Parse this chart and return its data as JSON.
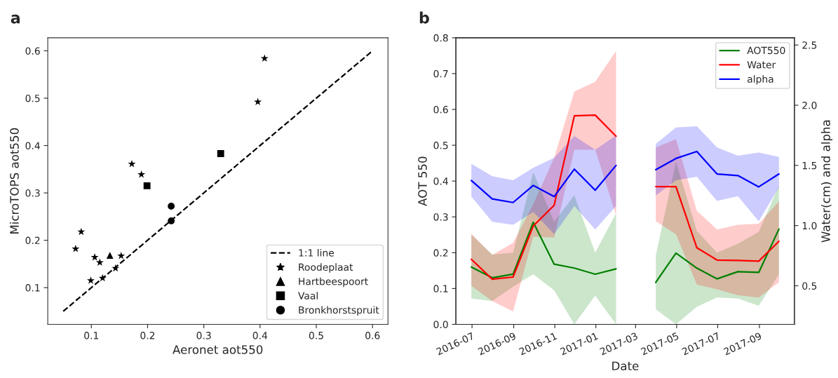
{
  "chart_data": [
    {
      "type": "scatter",
      "title": "a",
      "xlabel": "Aeronet aot550",
      "ylabel": "MicroTOPS aot550",
      "xlim": [
        0.0225,
        0.6275
      ],
      "ylim": [
        0.0225,
        0.6275
      ],
      "xticks": [
        0.1,
        0.2,
        0.3,
        0.4,
        0.5,
        0.6
      ],
      "yticks": [
        0.1,
        0.2,
        0.3,
        0.4,
        0.5,
        0.6
      ],
      "grid": false,
      "legend": "bottom right",
      "series": [
        {
          "type": "line",
          "name": "1:1 line",
          "color": "#000000",
          "line_style": "dashed",
          "marker": "none",
          "x": [
            0.05,
            0.6
          ],
          "values": [
            0.05,
            0.6
          ]
        },
        {
          "name": "Roodeplaat",
          "color": "#000000",
          "marker": "star",
          "x": [
            0.408,
            0.396,
            0.172,
            0.189,
            0.082,
            0.072,
            0.106,
            0.115,
            0.153,
            0.099,
            0.12,
            0.143
          ],
          "values": [
            0.584,
            0.492,
            0.361,
            0.339,
            0.218,
            0.182,
            0.164,
            0.153,
            0.167,
            0.115,
            0.12,
            0.141
          ]
        },
        {
          "name": "Hartbeespoort",
          "color": "#000000",
          "marker": "triangle",
          "x": [
            0.133
          ],
          "values": [
            0.168
          ]
        },
        {
          "name": "Vaal",
          "color": "#000000",
          "marker": "square",
          "x": [
            0.199,
            0.33
          ],
          "values": [
            0.315,
            0.383
          ]
        },
        {
          "name": "Bronkhorstspruit",
          "color": "#000000",
          "marker": "circle",
          "x": [
            0.242,
            0.242
          ],
          "values": [
            0.272,
            0.241
          ]
        }
      ]
    },
    {
      "type": "line",
      "title": "b",
      "xlabel": "Date",
      "ylabel": "AOT 550",
      "y2label": "Water(cm) and alpha",
      "x": [
        "2016-06-30",
        "2016-07-31",
        "2016-08-31",
        "2016-09-30",
        "2016-10-31",
        "2016-11-30",
        "2016-12-31",
        "2017-01-31",
        "2017-02-28",
        "2017-03-31",
        "2017-04-30",
        "2017-05-31",
        "2017-06-30",
        "2017-07-31",
        "2017-08-31",
        "2017-09-30"
      ],
      "xlim": [
        "2016-06-07",
        "2017-10-23"
      ],
      "xticks": [
        {
          "value": "2016-07-01",
          "label": "2016-07"
        },
        {
          "value": "2016-09-01",
          "label": "2016-09"
        },
        {
          "value": "2016-11-01",
          "label": "2016-11"
        },
        {
          "value": "2017-01-01",
          "label": "2017-01"
        },
        {
          "value": "2017-03-01",
          "label": "2017-03"
        },
        {
          "value": "2017-05-01",
          "label": "2017-05"
        },
        {
          "value": "2017-07-01",
          "label": "2017-07"
        },
        {
          "value": "2017-09-01",
          "label": "2017-09"
        }
      ],
      "ylim": [
        0,
        0.8
      ],
      "yticks": [
        {
          "value": 0,
          "label": "0.0"
        },
        0.1,
        0.2,
        0.3,
        0.4,
        0.5,
        0.6,
        0.7,
        0.8
      ],
      "y2lim": [
        0.18,
        2.56
      ],
      "y2ticks": [
        0.5,
        {
          "value": 1,
          "label": "1.0"
        },
        1.5,
        {
          "value": 2,
          "label": "2.0"
        },
        2.5
      ],
      "grid": false,
      "legend": "top right",
      "series": [
        {
          "name": "AOT550",
          "color": "#008000",
          "values": [
            0.16,
            0.13,
            0.14,
            0.285,
            0.168,
            0.157,
            0.14,
            0.155,
            null,
            0.117,
            0.199,
            0.157,
            0.127,
            0.147,
            0.145,
            0.266
          ],
          "lower": [
            0.072,
            0.065,
            0.105,
            0.14,
            0.095,
            0.0,
            0.08,
            0.0,
            null,
            0.042,
            0.0,
            0.049,
            0.075,
            0.072,
            0.052,
            0.14
          ],
          "upper": [
            0.25,
            0.195,
            0.2,
            0.425,
            0.287,
            0.36,
            0.2,
            0.31,
            null,
            0.193,
            0.453,
            0.261,
            0.2,
            0.225,
            0.258,
            0.388
          ]
        },
        {
          "name": "Water",
          "color": "#ff0000",
          "axis": "y2",
          "values": [
            0.72,
            0.555,
            0.573,
            0.997,
            1.169,
            1.912,
            1.918,
            1.742,
            null,
            1.324,
            1.324,
            0.816,
            0.714,
            0.71,
            0.705,
            0.87
          ],
          "lower": [
            0.5,
            0.373,
            0.286,
            0.909,
            0.9,
            1.631,
            1.631,
            1.085,
            null,
            1.036,
            0.929,
            0.51,
            0.471,
            0.422,
            0.403,
            0.529
          ],
          "upper": [
            0.933,
            0.757,
            0.857,
            1.178,
            1.563,
            2.114,
            2.196,
            2.45,
            null,
            1.649,
            1.718,
            1.123,
            0.968,
            1.007,
            1.016,
            1.201
          ]
        },
        {
          "name": "alpha",
          "color": "#0000ff",
          "axis": "y2",
          "values": [
            1.375,
            1.222,
            1.192,
            1.334,
            1.241,
            1.469,
            1.294,
            1.5,
            null,
            1.464,
            1.558,
            1.616,
            1.429,
            1.416,
            1.322,
            1.429
          ],
          "lower": [
            1.241,
            1.032,
            1.007,
            1.114,
            0.929,
            1.163,
            0.968,
            1.163,
            null,
            1.25,
            1.377,
            1.406,
            1.205,
            1.244,
            1.036,
            1.318
          ],
          "upper": [
            1.514,
            1.41,
            1.377,
            1.48,
            1.563,
            1.744,
            1.631,
            1.748,
            null,
            1.679,
            1.815,
            1.825,
            1.649,
            1.581,
            1.607,
            1.571
          ]
        }
      ]
    }
  ]
}
